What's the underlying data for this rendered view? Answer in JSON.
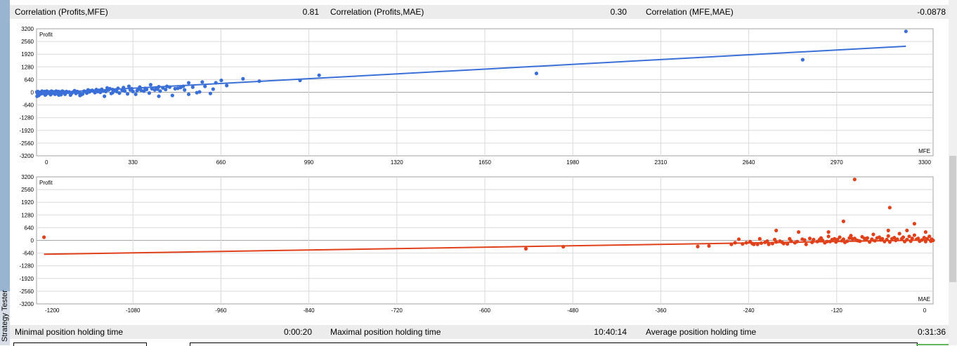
{
  "window": {
    "side_tab_label": "Strategy Tester"
  },
  "top_stats": [
    {
      "label": "Correlation (Profits,MFE)",
      "value": "0.81"
    },
    {
      "label": "Correlation (Profits,MAE)",
      "value": "0.30"
    },
    {
      "label": "Correlation (MFE,MAE)",
      "value": "-0.0878"
    }
  ],
  "bottom_stats": [
    {
      "label": "Minimal position holding time",
      "value": "0:00:20"
    },
    {
      "label": "Maximal position holding time",
      "value": "10:40:14"
    },
    {
      "label": "Average position holding time",
      "value": "0:31:36"
    }
  ],
  "colors": {
    "mfe": "#3a6fd8",
    "mae": "#e0401a",
    "grid": "#d9d9d9",
    "zero": "#a6a6a6"
  },
  "chart_data": [
    {
      "type": "scatter",
      "title": "",
      "ylabel": "Profit",
      "xlabel": "MFE",
      "xlim": [
        0,
        3300
      ],
      "ylim": [
        -3200,
        3200
      ],
      "grid": true,
      "color": "#3a6fd8",
      "xticks": [
        "0",
        "330",
        "660",
        "990",
        "1320",
        "1650",
        "1980",
        "2310",
        "2640",
        "2970",
        "3300"
      ],
      "yticks": [
        "3200",
        "2560",
        "1920",
        "1280",
        "640",
        "0",
        "-640",
        "-1280",
        "-1920",
        "-2560",
        "-3200"
      ],
      "trendline": [
        [
          0,
          -60
        ],
        [
          3200,
          2320
        ]
      ],
      "points": [
        [
          3200,
          3070
        ],
        [
          2820,
          1640
        ],
        [
          1840,
          950
        ],
        [
          1040,
          860
        ],
        [
          970,
          600
        ],
        [
          820,
          560
        ],
        [
          760,
          680
        ],
        [
          680,
          600
        ],
        [
          660,
          480
        ],
        [
          700,
          340
        ],
        [
          610,
          520
        ],
        [
          560,
          480
        ],
        [
          540,
          300
        ],
        [
          600,
          20
        ],
        [
          520,
          200
        ],
        [
          560,
          -100
        ],
        [
          480,
          300
        ],
        [
          500,
          -160
        ],
        [
          450,
          280
        ],
        [
          420,
          380
        ],
        [
          440,
          220
        ],
        [
          450,
          -200
        ],
        [
          400,
          200
        ],
        [
          380,
          180
        ],
        [
          370,
          80
        ],
        [
          380,
          260
        ],
        [
          350,
          180
        ],
        [
          340,
          300
        ],
        [
          320,
          240
        ],
        [
          300,
          200
        ],
        [
          290,
          120
        ],
        [
          280,
          140
        ],
        [
          280,
          -20
        ],
        [
          270,
          180
        ],
        [
          260,
          220
        ],
        [
          250,
          -200
        ],
        [
          240,
          150
        ],
        [
          230,
          100
        ],
        [
          220,
          140
        ],
        [
          210,
          60
        ],
        [
          200,
          80
        ],
        [
          190,
          120
        ],
        [
          180,
          40
        ],
        [
          170,
          -80
        ],
        [
          160,
          -60
        ],
        [
          160,
          -160
        ],
        [
          150,
          40
        ],
        [
          140,
          80
        ],
        [
          130,
          -40
        ],
        [
          120,
          20
        ],
        [
          110,
          40
        ],
        [
          100,
          -20
        ],
        [
          95,
          60
        ],
        [
          90,
          -120
        ],
        [
          85,
          20
        ],
        [
          80,
          40
        ],
        [
          75,
          -60
        ],
        [
          70,
          0
        ],
        [
          65,
          20
        ],
        [
          60,
          -40
        ],
        [
          55,
          60
        ],
        [
          50,
          -80
        ],
        [
          45,
          0
        ],
        [
          40,
          20
        ],
        [
          35,
          -100
        ],
        [
          30,
          40
        ],
        [
          25,
          -20
        ],
        [
          20,
          60
        ],
        [
          15,
          -80
        ],
        [
          10,
          0
        ],
        [
          8,
          -160
        ],
        [
          5,
          40
        ],
        [
          3,
          -40
        ],
        [
          2,
          -200
        ],
        [
          1,
          20
        ],
        [
          12,
          -100
        ],
        [
          18,
          20
        ],
        [
          22,
          -60
        ],
        [
          28,
          -20
        ],
        [
          32,
          -140
        ],
        [
          38,
          60
        ],
        [
          42,
          -40
        ],
        [
          48,
          20
        ],
        [
          52,
          -120
        ],
        [
          58,
          40
        ],
        [
          62,
          -20
        ],
        [
          68,
          -100
        ],
        [
          72,
          60
        ],
        [
          78,
          0
        ],
        [
          82,
          -140
        ],
        [
          88,
          20
        ],
        [
          92,
          -60
        ],
        [
          98,
          40
        ],
        [
          105,
          -100
        ],
        [
          115,
          0
        ],
        [
          125,
          -140
        ],
        [
          135,
          20
        ],
        [
          145,
          -60
        ],
        [
          155,
          0
        ],
        [
          165,
          -120
        ],
        [
          175,
          60
        ],
        [
          185,
          -40
        ],
        [
          195,
          20
        ],
        [
          205,
          100
        ],
        [
          215,
          -20
        ],
        [
          225,
          40
        ],
        [
          235,
          0
        ],
        [
          245,
          60
        ],
        [
          255,
          40
        ],
        [
          265,
          120
        ],
        [
          275,
          -60
        ],
        [
          285,
          80
        ],
        [
          295,
          40
        ],
        [
          305,
          -40
        ],
        [
          315,
          100
        ],
        [
          325,
          60
        ],
        [
          335,
          -80
        ],
        [
          345,
          120
        ],
        [
          355,
          40
        ],
        [
          365,
          -100
        ],
        [
          375,
          160
        ],
        [
          385,
          100
        ],
        [
          395,
          60
        ],
        [
          405,
          140
        ],
        [
          415,
          -40
        ],
        [
          425,
          180
        ],
        [
          435,
          120
        ],
        [
          445,
          160
        ],
        [
          455,
          60
        ],
        [
          465,
          220
        ],
        [
          475,
          140
        ],
        [
          490,
          260
        ],
        [
          510,
          180
        ],
        [
          530,
          240
        ],
        [
          545,
          120
        ],
        [
          575,
          260
        ],
        [
          590,
          -20
        ],
        [
          620,
          300
        ],
        [
          640,
          -60
        ],
        [
          650,
          160
        ]
      ]
    },
    {
      "type": "scatter",
      "title": "",
      "ylabel": "Profit",
      "xlabel": "MAE",
      "xlim": [
        -1200,
        0
      ],
      "ylim": [
        -3200,
        3200
      ],
      "grid": true,
      "color": "#e0401a",
      "xticks": [
        "-1200",
        "-1080",
        "-960",
        "-840",
        "-720",
        "-600",
        "-480",
        "-360",
        "-240",
        "-120",
        "0"
      ],
      "yticks": [
        "3200",
        "2560",
        "1920",
        "1280",
        "640",
        "0",
        "-640",
        "-1280",
        "-1920",
        "-2560",
        "-3200"
      ],
      "trendline": [
        [
          -1190,
          -700
        ],
        [
          0,
          20
        ]
      ],
      "points": [
        [
          -1190,
          160
        ],
        [
          -545,
          -420
        ],
        [
          -495,
          -320
        ],
        [
          -315,
          -310
        ],
        [
          -300,
          -280
        ],
        [
          -105,
          3070
        ],
        [
          -58,
          1650
        ],
        [
          -120,
          960
        ],
        [
          -25,
          840
        ],
        [
          -210,
          500
        ],
        [
          -180,
          420
        ],
        [
          -140,
          420
        ],
        [
          -60,
          500
        ],
        [
          -35,
          500
        ],
        [
          -10,
          420
        ],
        [
          -260,
          60
        ],
        [
          -250,
          -120
        ],
        [
          -240,
          -200
        ],
        [
          -230,
          -140
        ],
        [
          -220,
          -200
        ],
        [
          -210,
          -80
        ],
        [
          -200,
          -160
        ],
        [
          -190,
          -40
        ],
        [
          -185,
          -120
        ],
        [
          -175,
          60
        ],
        [
          -170,
          -200
        ],
        [
          -160,
          40
        ],
        [
          -155,
          -60
        ],
        [
          -150,
          120
        ],
        [
          -145,
          -120
        ],
        [
          -140,
          200
        ],
        [
          -135,
          40
        ],
        [
          -130,
          -80
        ],
        [
          -125,
          160
        ],
        [
          -120,
          60
        ],
        [
          -115,
          -40
        ],
        [
          -110,
          240
        ],
        [
          -105,
          100
        ],
        [
          -100,
          -20
        ],
        [
          -95,
          180
        ],
        [
          -90,
          40
        ],
        [
          -85,
          -80
        ],
        [
          -80,
          300
        ],
        [
          -75,
          120
        ],
        [
          -70,
          20
        ],
        [
          -65,
          -60
        ],
        [
          -60,
          220
        ],
        [
          -55,
          80
        ],
        [
          -50,
          0
        ],
        [
          -45,
          340
        ],
        [
          -40,
          160
        ],
        [
          -35,
          40
        ],
        [
          -30,
          -40
        ],
        [
          -25,
          260
        ],
        [
          -20,
          100
        ],
        [
          -15,
          20
        ],
        [
          -10,
          -60
        ],
        [
          -5,
          200
        ],
        [
          -2,
          60
        ],
        [
          0,
          0
        ],
        [
          -270,
          -200
        ],
        [
          -265,
          -120
        ],
        [
          -255,
          -180
        ],
        [
          -245,
          -60
        ],
        [
          -235,
          -200
        ],
        [
          -225,
          -100
        ],
        [
          -215,
          -160
        ],
        [
          -205,
          -40
        ],
        [
          -195,
          -180
        ],
        [
          -165,
          100
        ],
        [
          -148,
          0
        ],
        [
          -138,
          -60
        ],
        [
          -128,
          40
        ],
        [
          -118,
          -100
        ],
        [
          -108,
          80
        ],
        [
          -98,
          -40
        ],
        [
          -88,
          120
        ],
        [
          -78,
          -20
        ],
        [
          -68,
          80
        ],
        [
          -58,
          -80
        ],
        [
          -48,
          60
        ],
        [
          -38,
          -60
        ],
        [
          -28,
          100
        ],
        [
          -18,
          -40
        ],
        [
          -8,
          80
        ],
        [
          -3,
          -40
        ],
        [
          -12,
          140
        ],
        [
          -22,
          60
        ],
        [
          -32,
          200
        ],
        [
          -42,
          80
        ],
        [
          -52,
          140
        ],
        [
          -62,
          40
        ],
        [
          -72,
          160
        ],
        [
          -82,
          60
        ],
        [
          -92,
          100
        ],
        [
          -102,
          0
        ],
        [
          -112,
          120
        ],
        [
          -122,
          -20
        ],
        [
          -132,
          80
        ],
        [
          -142,
          -60
        ],
        [
          -152,
          40
        ],
        [
          -162,
          -100
        ],
        [
          -172,
          20
        ],
        [
          -182,
          -60
        ],
        [
          -192,
          80
        ],
        [
          -202,
          -100
        ],
        [
          -212,
          40
        ],
        [
          -222,
          -40
        ],
        [
          -232,
          80
        ],
        [
          -242,
          -160
        ]
      ]
    }
  ]
}
